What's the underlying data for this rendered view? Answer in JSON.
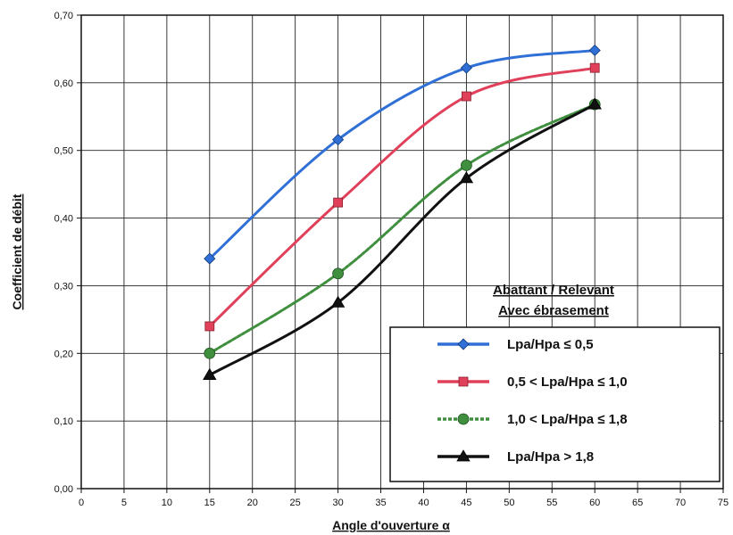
{
  "chart_data": {
    "type": "line",
    "xlabel": "Angle d'ouverture α",
    "ylabel": "Coefficient de débit",
    "xlim": [
      0,
      75
    ],
    "ylim": [
      0,
      0.7
    ],
    "xticks": [
      "0",
      "5",
      "10",
      "15",
      "20",
      "25",
      "30",
      "35",
      "40",
      "45",
      "50",
      "55",
      "60",
      "65",
      "70",
      "75"
    ],
    "yticks": [
      "0,00",
      "0,10",
      "0,20",
      "0,30",
      "0,40",
      "0,50",
      "0,60",
      "0,70"
    ],
    "grid": true,
    "legend_placement": "lower-right",
    "legend_title_lines": [
      "Abattant / Relevant",
      "Avec ébrasement"
    ],
    "x": [
      15,
      30,
      45,
      60
    ],
    "series": [
      {
        "name": "Lpa/Hpa ≤ 0,5",
        "values": [
          0.34,
          0.516,
          0.622,
          0.648
        ],
        "color": "#2f6fd6",
        "marker": "diamond",
        "dash": ""
      },
      {
        "name": "0,5 < Lpa/Hpa ≤ 1,0",
        "values": [
          0.24,
          0.423,
          0.58,
          0.622
        ],
        "color": "#e0405a",
        "marker": "square",
        "dash": ""
      },
      {
        "name": "1,0 < Lpa/Hpa ≤ 1,8",
        "values": [
          0.2,
          0.318,
          0.478,
          0.568
        ],
        "color": "#3f8f3f",
        "marker": "circle",
        "dash": "4,2"
      },
      {
        "name": "Lpa/Hpa > 1,8",
        "values": [
          0.168,
          0.275,
          0.459,
          0.568
        ],
        "color": "#111111",
        "marker": "triangle",
        "dash": ""
      }
    ]
  }
}
